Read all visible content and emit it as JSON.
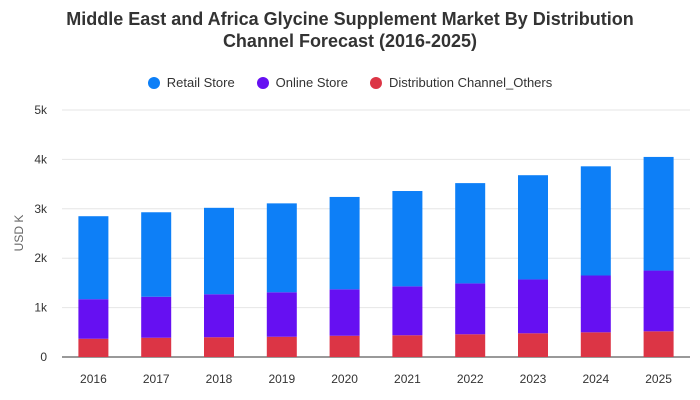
{
  "chart_data": {
    "type": "bar",
    "stacked": true,
    "title_line1": "Middle East and Africa Glycine Supplement Market By Distribution",
    "title_line2": "Channel Forecast (2016-2025)",
    "xlabel": "",
    "ylabel": "USD K",
    "ylim": [
      0,
      5000
    ],
    "yticks": [
      {
        "value": 0,
        "label": "0"
      },
      {
        "value": 1000,
        "label": "1k"
      },
      {
        "value": 2000,
        "label": "2k"
      },
      {
        "value": 3000,
        "label": "3k"
      },
      {
        "value": 4000,
        "label": "4k"
      },
      {
        "value": 5000,
        "label": "5k"
      }
    ],
    "grid": true,
    "legend_position": "top-center",
    "categories": [
      "2016",
      "2017",
      "2018",
      "2019",
      "2020",
      "2021",
      "2022",
      "2023",
      "2024",
      "2025"
    ],
    "series": [
      {
        "name": "Distribution Channel_Others",
        "color": "#dc3545",
        "values": [
          370,
          390,
          400,
          410,
          430,
          440,
          460,
          480,
          500,
          520
        ]
      },
      {
        "name": "Online Store",
        "color": "#6610f2",
        "values": [
          800,
          830,
          870,
          900,
          940,
          990,
          1030,
          1090,
          1150,
          1230
        ]
      },
      {
        "name": "Retail Store",
        "color": "#0d7ff7",
        "values": [
          1680,
          1710,
          1750,
          1800,
          1870,
          1930,
          2030,
          2110,
          2210,
          2300
        ]
      }
    ]
  },
  "legend": [
    {
      "label": "Retail Store",
      "color": "#0d7ff7"
    },
    {
      "label": "Online Store",
      "color": "#6610f2"
    },
    {
      "label": "Distribution Channel_Others",
      "color": "#dc3545"
    }
  ]
}
